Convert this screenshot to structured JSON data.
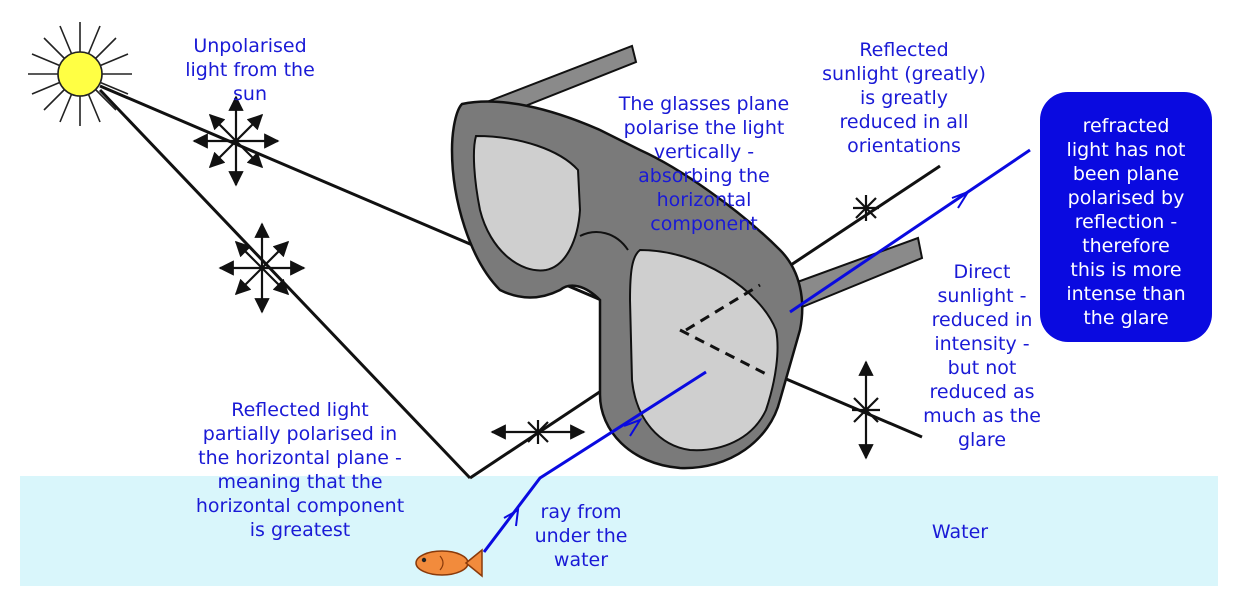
{
  "colors": {
    "text": "#1a1ad6",
    "box_fill": "#0a0ae0",
    "box_text": "#ffffff",
    "water": "#d9f6fb",
    "sun": "#ffff44",
    "ray_black": "#111111",
    "ray_blue": "#0a0ae0",
    "lens": "#cfcfcf",
    "frame": "#7a7a7a",
    "fish": "#f28b3c"
  },
  "icons": [
    "sun-icon",
    "sunglasses-icon",
    "fish-icon",
    "polarisation-arrows-icon"
  ],
  "labels": {
    "unpolarised": "Unpolarised\nlight from the\nsun",
    "glasses_plane": "The glasses plane\npolarise the light\nvertically -\nabsorbing the\nhorizontal\ncomponent",
    "reflected_sunlight": "Reflected\nsunlight (greatly)\nis greatly\nreduced in all\norientations",
    "refracted_box": "refracted\nlight has not\nbeen plane\npolarised by\nreflection -\ntherefore\nthis is more\nintense than\nthe glare",
    "direct_sunlight": "Direct\nsunlight -\nreduced in\nintensity -\nbut not\nreduced as\nmuch as the\nglare",
    "reflected_light": "Reflected light\npartially polarised in\nthe horizontal plane -\nmeaning that the\nhorizontal component\nis greatest",
    "ray_under_water": "ray from\nunder the\nwater",
    "water": "Water"
  }
}
